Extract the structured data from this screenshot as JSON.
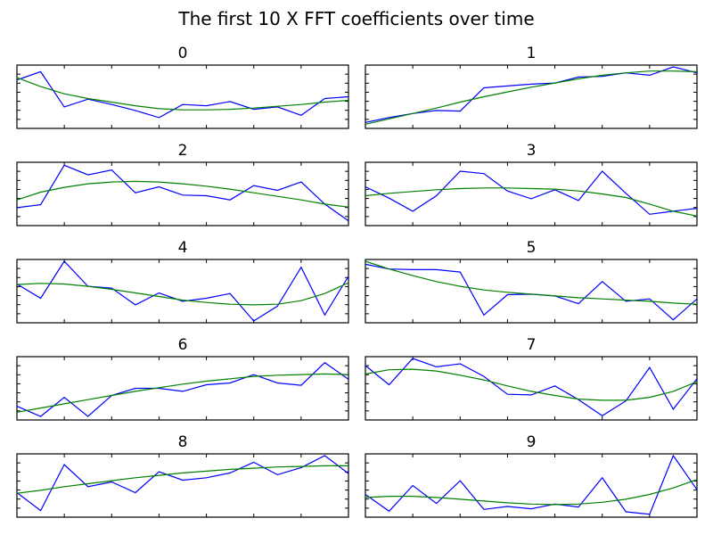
{
  "title": "The first 10 X FFT coefficients over time",
  "colors": {
    "raw": "#0000ff",
    "smooth": "#008000",
    "frame": "#000000"
  },
  "chart_data": [
    {
      "type": "line",
      "title": "0",
      "ylim": [
        0,
        1
      ],
      "series": [
        {
          "values": [
            0.78,
            0.92,
            0.33,
            0.46,
            0.37,
            0.27,
            0.15,
            0.37,
            0.35,
            0.42,
            0.29,
            0.33,
            0.19,
            0.47,
            0.5
          ]
        },
        {
          "values": [
            0.82,
            0.67,
            0.55,
            0.47,
            0.41,
            0.35,
            0.3,
            0.28,
            0.28,
            0.29,
            0.31,
            0.34,
            0.37,
            0.41,
            0.44
          ]
        }
      ]
    },
    {
      "type": "line",
      "title": "1",
      "ylim": [
        0,
        1
      ],
      "series": [
        {
          "values": [
            0.07,
            0.15,
            0.22,
            0.27,
            0.26,
            0.65,
            0.68,
            0.71,
            0.73,
            0.83,
            0.84,
            0.9,
            0.86,
            1.0,
            0.9
          ]
        },
        {
          "values": [
            0.04,
            0.13,
            0.22,
            0.31,
            0.41,
            0.5,
            0.58,
            0.66,
            0.73,
            0.8,
            0.86,
            0.9,
            0.93,
            0.93,
            0.92
          ]
        }
      ]
    },
    {
      "type": "line",
      "title": "2",
      "ylim": [
        0,
        1
      ],
      "series": [
        {
          "values": [
            0.27,
            0.32,
            0.98,
            0.82,
            0.9,
            0.52,
            0.62,
            0.48,
            0.47,
            0.4,
            0.64,
            0.56,
            0.7,
            0.33,
            0.05
          ]
        },
        {
          "values": [
            0.4,
            0.53,
            0.61,
            0.67,
            0.7,
            0.71,
            0.7,
            0.67,
            0.63,
            0.58,
            0.52,
            0.46,
            0.4,
            0.33,
            0.28
          ]
        }
      ]
    },
    {
      "type": "line",
      "title": "3",
      "ylim": [
        0,
        1
      ],
      "series": [
        {
          "values": [
            0.62,
            0.43,
            0.21,
            0.47,
            0.88,
            0.84,
            0.55,
            0.42,
            0.57,
            0.39,
            0.88,
            0.51,
            0.16,
            0.21,
            0.26
          ]
        },
        {
          "values": [
            0.47,
            0.51,
            0.54,
            0.57,
            0.59,
            0.6,
            0.6,
            0.59,
            0.58,
            0.55,
            0.5,
            0.44,
            0.33,
            0.21,
            0.13
          ]
        }
      ]
    },
    {
      "type": "line",
      "title": "4",
      "ylim": [
        0,
        1
      ],
      "series": [
        {
          "values": [
            0.62,
            0.38,
            1.0,
            0.58,
            0.55,
            0.27,
            0.47,
            0.33,
            0.38,
            0.46,
            0.0,
            0.25,
            0.9,
            0.1,
            0.75
          ]
        },
        {
          "values": [
            0.61,
            0.63,
            0.62,
            0.58,
            0.53,
            0.47,
            0.41,
            0.35,
            0.31,
            0.28,
            0.27,
            0.28,
            0.34,
            0.46,
            0.64
          ]
        }
      ]
    },
    {
      "type": "line",
      "title": "5",
      "ylim": [
        0,
        1
      ],
      "series": [
        {
          "values": [
            0.95,
            0.87,
            0.86,
            0.86,
            0.82,
            0.1,
            0.44,
            0.45,
            0.42,
            0.29,
            0.66,
            0.33,
            0.37,
            0.02,
            0.37
          ]
        },
        {
          "values": [
            1.0,
            0.87,
            0.76,
            0.66,
            0.58,
            0.52,
            0.48,
            0.45,
            0.42,
            0.39,
            0.37,
            0.35,
            0.33,
            0.3,
            0.28
          ]
        }
      ]
    },
    {
      "type": "line",
      "title": "6",
      "ylim": [
        0,
        1
      ],
      "series": [
        {
          "values": [
            0.2,
            0.03,
            0.35,
            0.03,
            0.38,
            0.5,
            0.5,
            0.45,
            0.56,
            0.59,
            0.73,
            0.59,
            0.55,
            0.93,
            0.65
          ]
        },
        {
          "values": [
            0.1,
            0.17,
            0.24,
            0.31,
            0.38,
            0.45,
            0.51,
            0.57,
            0.62,
            0.66,
            0.7,
            0.72,
            0.73,
            0.74,
            0.73
          ]
        }
      ]
    },
    {
      "type": "line",
      "title": "7",
      "ylim": [
        0,
        1
      ],
      "series": [
        {
          "values": [
            0.88,
            0.56,
            1.0,
            0.86,
            0.91,
            0.7,
            0.4,
            0.39,
            0.54,
            0.31,
            0.04,
            0.29,
            0.85,
            0.15,
            0.66
          ]
        },
        {
          "values": [
            0.74,
            0.81,
            0.82,
            0.79,
            0.72,
            0.64,
            0.54,
            0.45,
            0.38,
            0.32,
            0.3,
            0.3,
            0.35,
            0.45,
            0.61
          ]
        }
      ]
    },
    {
      "type": "line",
      "title": "8",
      "ylim": [
        0,
        1
      ],
      "series": [
        {
          "values": [
            0.38,
            0.08,
            0.85,
            0.48,
            0.56,
            0.38,
            0.73,
            0.59,
            0.63,
            0.71,
            0.89,
            0.68,
            0.8,
            1.0,
            0.7
          ]
        },
        {
          "values": [
            0.37,
            0.42,
            0.48,
            0.53,
            0.58,
            0.63,
            0.67,
            0.71,
            0.74,
            0.77,
            0.79,
            0.81,
            0.82,
            0.83,
            0.83
          ]
        }
      ]
    },
    {
      "type": "line",
      "title": "9",
      "ylim": [
        0,
        1
      ],
      "series": [
        {
          "values": [
            0.35,
            0.07,
            0.5,
            0.2,
            0.58,
            0.1,
            0.15,
            0.11,
            0.19,
            0.14,
            0.63,
            0.06,
            0.02,
            1.0,
            0.43
          ]
        },
        {
          "values": [
            0.3,
            0.32,
            0.32,
            0.3,
            0.27,
            0.24,
            0.21,
            0.19,
            0.18,
            0.19,
            0.22,
            0.27,
            0.35,
            0.46,
            0.6
          ]
        }
      ]
    }
  ]
}
